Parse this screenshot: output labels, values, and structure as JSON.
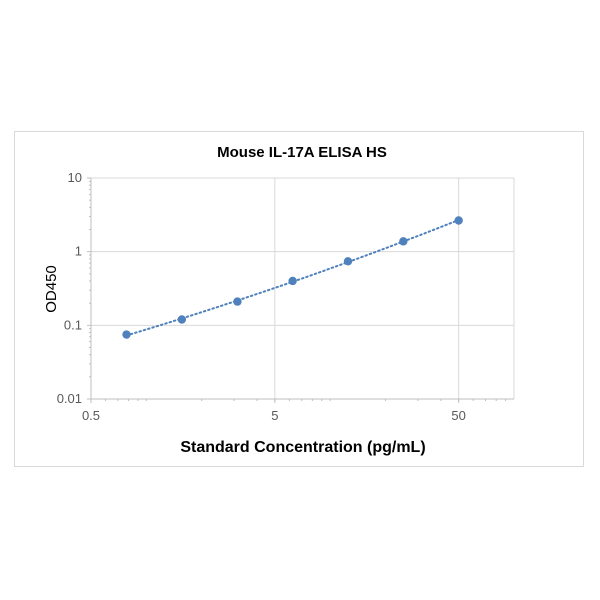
{
  "chart_data": {
    "type": "scatter",
    "title": "Mouse IL-17A ELISA HS",
    "xlabel": "Standard Concentration (pg/mL)",
    "ylabel": "OD450",
    "x_scale": "log",
    "y_scale": "log",
    "xlim": [
      0.5,
      100
    ],
    "ylim": [
      0.01,
      10
    ],
    "x_ticks": [
      {
        "value": 0.5,
        "label": "0.5"
      },
      {
        "value": 5,
        "label": "5"
      },
      {
        "value": 50,
        "label": "50"
      }
    ],
    "y_ticks": [
      {
        "value": 10,
        "label": "10"
      },
      {
        "value": 1,
        "label": "1"
      },
      {
        "value": 0.1,
        "label": "0.1"
      },
      {
        "value": 0.01,
        "label": "0.01"
      }
    ],
    "grid": true,
    "legend": "none",
    "series": [
      {
        "x": [
          0.78,
          1.56,
          3.13,
          6.25,
          12.5,
          25,
          50
        ],
        "y": [
          0.075,
          0.12,
          0.21,
          0.4,
          0.74,
          1.38,
          2.65
        ],
        "marker_color": "#4F81BD",
        "trendline": "dotted"
      }
    ]
  }
}
